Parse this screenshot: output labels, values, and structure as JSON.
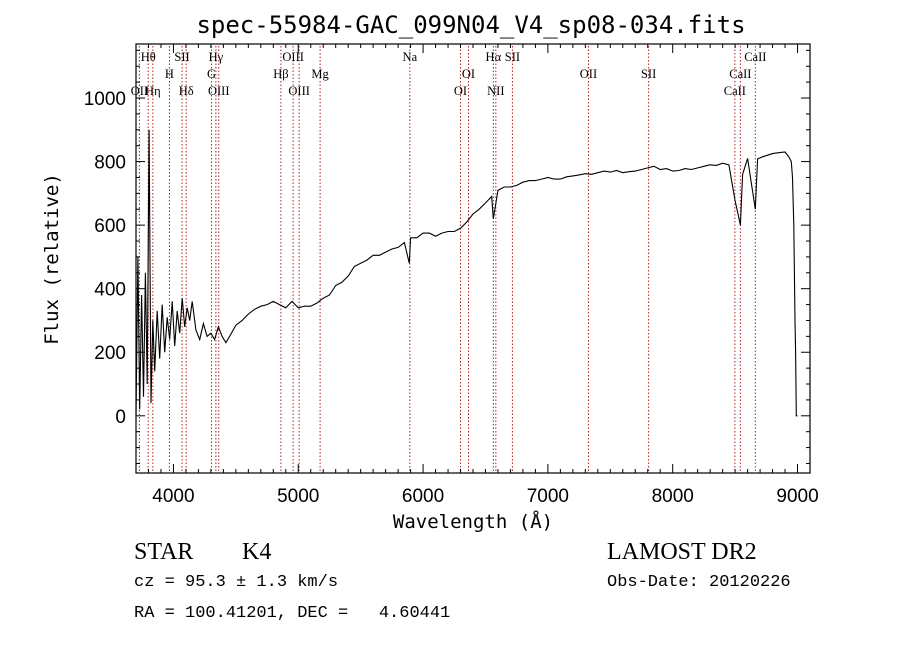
{
  "chart_data": {
    "type": "line",
    "title": "spec-55984-GAC_099N04_V4_sp08-034.fits",
    "xlabel": "Wavelength (Å)",
    "ylabel": "Flux (relative)",
    "xlim": [
      3700,
      9100
    ],
    "ylim": [
      -180,
      1170
    ],
    "xticks": [
      4000,
      5000,
      6000,
      7000,
      8000,
      9000
    ],
    "yticks": [
      0,
      200,
      400,
      600,
      800,
      1000
    ],
    "grid": false,
    "series": [
      {
        "x": [
          3700,
          3715,
          3730,
          3745,
          3760,
          3775,
          3790,
          3805,
          3820,
          3835,
          3850,
          3870,
          3890,
          3910,
          3930,
          3950,
          3970,
          3990,
          4010,
          4030,
          4050,
          4070,
          4090,
          4110,
          4130,
          4150,
          4180,
          4210,
          4240,
          4270,
          4300,
          4330,
          4360,
          4390,
          4420,
          4450,
          4500,
          4550,
          4600,
          4650,
          4700,
          4750,
          4800,
          4850,
          4900,
          4950,
          5000,
          5050,
          5100,
          5150,
          5200,
          5250,
          5300,
          5350,
          5400,
          5450,
          5500,
          5550,
          5600,
          5650,
          5700,
          5750,
          5800,
          5850,
          5890,
          5900,
          5950,
          6000,
          6050,
          6100,
          6150,
          6200,
          6250,
          6300,
          6350,
          6400,
          6450,
          6500,
          6550,
          6563,
          6600,
          6650,
          6700,
          6750,
          6800,
          6850,
          6900,
          6950,
          7000,
          7050,
          7100,
          7150,
          7200,
          7250,
          7300,
          7350,
          7400,
          7450,
          7500,
          7550,
          7600,
          7650,
          7700,
          7750,
          7800,
          7850,
          7900,
          7950,
          8000,
          8050,
          8100,
          8150,
          8200,
          8250,
          8300,
          8350,
          8400,
          8450,
          8498,
          8542,
          8560,
          8600,
          8662,
          8680,
          8720,
          8760,
          8800,
          8850,
          8900,
          8930,
          8950,
          8960,
          8970,
          8980,
          8985,
          8990,
          9000
        ],
        "y": [
          0,
          500,
          20,
          380,
          60,
          450,
          100,
          900,
          40,
          300,
          140,
          330,
          180,
          350,
          200,
          310,
          240,
          360,
          220,
          330,
          260,
          370,
          280,
          340,
          300,
          360,
          270,
          240,
          290,
          250,
          260,
          240,
          280,
          250,
          230,
          250,
          285,
          300,
          320,
          335,
          345,
          350,
          360,
          350,
          340,
          360,
          340,
          345,
          345,
          355,
          370,
          380,
          410,
          420,
          440,
          470,
          480,
          490,
          505,
          505,
          515,
          525,
          530,
          545,
          480,
          560,
          560,
          575,
          575,
          565,
          575,
          580,
          580,
          590,
          610,
          635,
          650,
          670,
          690,
          620,
          710,
          720,
          720,
          725,
          735,
          740,
          740,
          745,
          750,
          745,
          745,
          752,
          755,
          758,
          762,
          760,
          765,
          770,
          767,
          772,
          765,
          768,
          770,
          775,
          780,
          785,
          775,
          778,
          770,
          772,
          778,
          775,
          780,
          785,
          790,
          788,
          795,
          790,
          680,
          600,
          760,
          810,
          650,
          808,
          815,
          820,
          825,
          828,
          830,
          815,
          800,
          750,
          600,
          300,
          200,
          0,
          0
        ]
      }
    ],
    "line_markers": [
      {
        "label": "Hθ",
        "wl": 3798,
        "row": 1
      },
      {
        "label": "OII",
        "wl": 3727,
        "row": 3
      },
      {
        "label": "Hη",
        "wl": 3835,
        "row": 3
      },
      {
        "label": "H",
        "wl": 3968,
        "row": 2
      },
      {
        "label": "SII",
        "wl": 4069,
        "row": 1
      },
      {
        "label": "Hδ",
        "wl": 4102,
        "row": 3
      },
      {
        "label": "Hγ",
        "wl": 4340,
        "row": 1
      },
      {
        "label": "G",
        "wl": 4305,
        "row": 2
      },
      {
        "label": "OIII",
        "wl": 4363,
        "row": 3
      },
      {
        "label": "OIII",
        "wl": 4959,
        "row": 1
      },
      {
        "label": "Hβ",
        "wl": 4861,
        "row": 2
      },
      {
        "label": "OIII",
        "wl": 5007,
        "row": 3
      },
      {
        "label": "Mg",
        "wl": 5175,
        "row": 2
      },
      {
        "label": "Na",
        "wl": 5894,
        "row": 1
      },
      {
        "label": "OI",
        "wl": 6364,
        "row": 2
      },
      {
        "label": "OI",
        "wl": 6300,
        "row": 3
      },
      {
        "label": "Hα",
        "wl": 6563,
        "row": 1
      },
      {
        "label": "SII",
        "wl": 6716,
        "row": 1
      },
      {
        "label": "NII",
        "wl": 6583,
        "row": 3
      },
      {
        "label": "OII",
        "wl": 7325,
        "row": 2
      },
      {
        "label": "SII",
        "wl": 7807,
        "row": 2
      },
      {
        "label": "CaII",
        "wl": 8662,
        "row": 1
      },
      {
        "label": "CaII",
        "wl": 8542,
        "row": 2
      },
      {
        "label": "CaII",
        "wl": 8498,
        "row": 3
      }
    ]
  },
  "info": {
    "class": "STAR",
    "subclass": "K4",
    "survey": "LAMOST DR2",
    "cz": "cz = 95.3 ± 1.3 km/s",
    "obs_date": "Obs-Date: 20120226",
    "radec": "RA = 100.41201, DEC =   4.60441"
  },
  "colors": {
    "spectrum": "#000000",
    "marker": "#b22222",
    "axis": "#000000",
    "background": "#ffffff"
  }
}
